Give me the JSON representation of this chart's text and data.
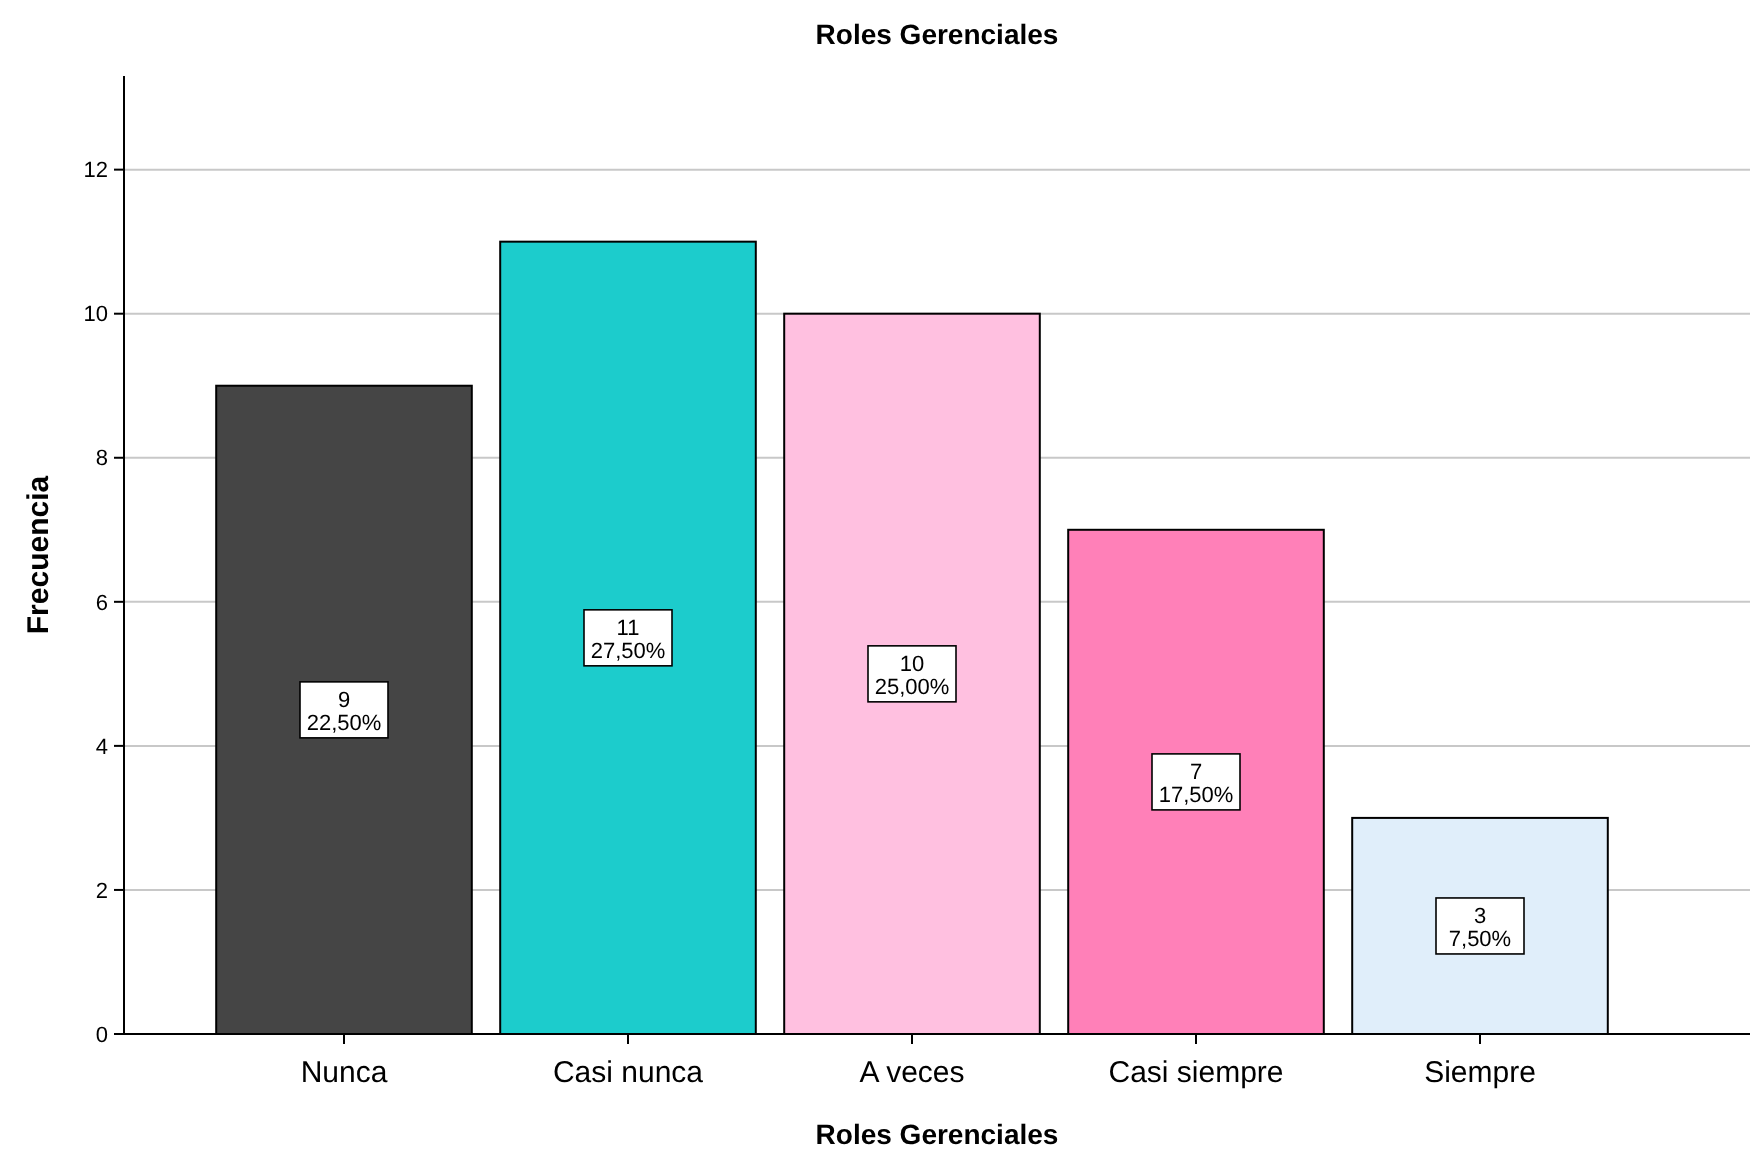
{
  "chart_data": {
    "type": "bar",
    "title": "Roles Gerenciales",
    "xlabel": "Roles Gerenciales",
    "ylabel": "Frecuencia",
    "categories": [
      "Nunca",
      "Casi nunca",
      "A veces",
      "Casi siempre",
      "Siempre"
    ],
    "values": [
      9,
      11,
      10,
      7,
      3
    ],
    "colors": [
      "#454545",
      "#1ccccc",
      "#ffc0e0",
      "#ff80b8",
      "#e0eefa"
    ],
    "value_labels": [
      "9\n22,50%",
      "11\n27,50%",
      "10\n25,00%",
      "7\n17,50%",
      "3\n7,50%"
    ],
    "ylim": [
      0,
      13.3
    ],
    "yticks": [
      0,
      2,
      4,
      6,
      8,
      10,
      12
    ],
    "grid": "y"
  }
}
